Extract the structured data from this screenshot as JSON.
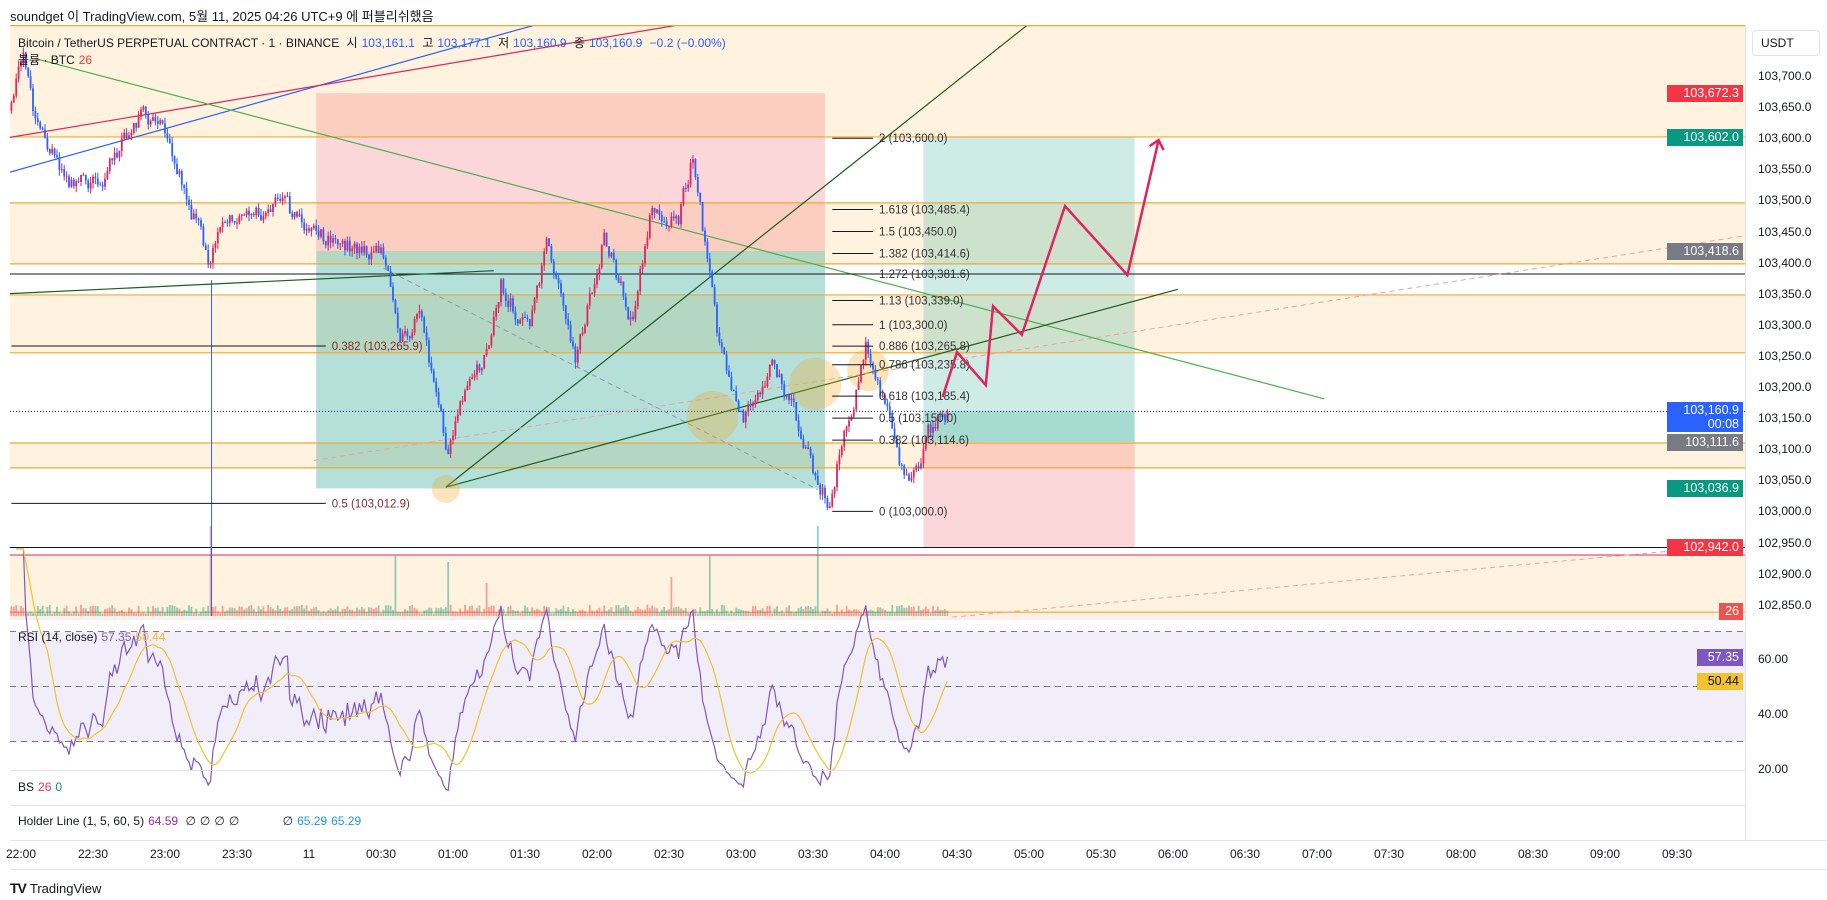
{
  "header": {
    "published": "soundget 이 TradingView.com, 5월 11, 2025 04:26 UTC+9 에 퍼블리쉬했음"
  },
  "legend": {
    "symbol": "Bitcoin / TetherUS PERPETUAL CONTRACT · 1 · BINANCE",
    "open_label": "시",
    "open": "103,161.1",
    "high_label": "고",
    "high": "103,177.1",
    "low_label": "저",
    "low": "103,160.9",
    "close_label": "종",
    "close": "103,160.9",
    "change": "−0.2 (−0.00%)",
    "volume_label": "볼륨 · BTC",
    "volume": "26"
  },
  "price_axis": {
    "currency": "USDT",
    "labels": [
      "103,700.0",
      "103,650.0",
      "103,600.0",
      "103,550.0",
      "103,500.0",
      "103,450.0",
      "103,400.0",
      "103,350.0",
      "103,300.0",
      "103,250.0",
      "103,200.0",
      "103,150.0",
      "103,100.0",
      "103,050.0",
      "103,000.0",
      "102,950.0",
      "102,900.0",
      "102,850.0"
    ],
    "label_prices": [
      103700,
      103650,
      103600,
      103550,
      103500,
      103450,
      103400,
      103350,
      103300,
      103250,
      103200,
      103150,
      103100,
      103050,
      103000,
      102950,
      102900,
      102850
    ],
    "badges": [
      {
        "text": "103,672.3",
        "price": 103672.3,
        "color": "#f23645"
      },
      {
        "text": "103,602.0",
        "price": 103602.0,
        "color": "#089981"
      },
      {
        "text": "103,418.6",
        "price": 103418.6,
        "color": "#787b86"
      },
      {
        "text": "103,160.9",
        "sub": "00:08",
        "price": 103160.9,
        "color": "#2962ff"
      },
      {
        "text": "103,111.6",
        "price": 103111.6,
        "color": "#787b86"
      },
      {
        "text": "103,036.9",
        "price": 103036.9,
        "color": "#089981"
      },
      {
        "text": "102,942.0",
        "price": 102942.0,
        "color": "#f23645"
      }
    ],
    "volume_badge": "26"
  },
  "rsi": {
    "title": "RSI (14, close)",
    "value": "57.35",
    "ma": "50.44",
    "axis": [
      "60.00",
      "40.00",
      "20.00"
    ],
    "axis_values": [
      60,
      40,
      20
    ]
  },
  "bs": {
    "title": "BS",
    "v1": "26",
    "v2": "0"
  },
  "holder": {
    "title": "Holder Line (1, 5, 60, 5)",
    "v1": "64.59",
    "s1": "∅",
    "s2": "∅",
    "s3": "∅",
    "s4": "∅",
    "s5": "∅",
    "v2": "65.29",
    "v3": "65.29"
  },
  "time_axis": {
    "labels": [
      "22:00",
      "22:30",
      "23:00",
      "23:30",
      "11",
      "00:30",
      "01:00",
      "01:30",
      "02:00",
      "02:30",
      "03:00",
      "03:30",
      "04:00",
      "04:30",
      "05:00",
      "05:30",
      "06:00",
      "06:30",
      "07:00",
      "07:30",
      "08:00",
      "08:30",
      "09:00",
      "09:30"
    ]
  },
  "footer": {
    "brand": "TradingView"
  },
  "colors": {
    "up": "#e0245e",
    "down": "#2962ff",
    "orange": "#f0a830",
    "band": "#fff3e0",
    "rsi": "#7e57c2",
    "rsi_ma": "#f2c230"
  },
  "chart_data": {
    "type": "candlestick",
    "x_unit": "minutes since 22:00",
    "price_range": [
      102830,
      103790
    ],
    "last_close": 103160.9,
    "price_path": [
      [
        -4,
        103644
      ],
      [
        1,
        103728
      ],
      [
        6,
        103634
      ],
      [
        20,
        103513
      ],
      [
        35,
        103541
      ],
      [
        49,
        103634
      ],
      [
        61,
        103616
      ],
      [
        69,
        103503
      ],
      [
        78,
        103410
      ],
      [
        88,
        103475
      ],
      [
        107,
        103494
      ],
      [
        122,
        103447
      ],
      [
        136,
        103428
      ],
      [
        151,
        103419
      ],
      [
        158,
        103260
      ],
      [
        166,
        103316
      ],
      [
        178,
        103100
      ],
      [
        185,
        103185
      ],
      [
        195,
        103260
      ],
      [
        200,
        103372
      ],
      [
        212,
        103278
      ],
      [
        219,
        103438
      ],
      [
        231,
        103241
      ],
      [
        243,
        103447
      ],
      [
        255,
        103297
      ],
      [
        262,
        103475
      ],
      [
        274,
        103466
      ],
      [
        280,
        103578
      ],
      [
        287,
        103372
      ],
      [
        291,
        103260
      ],
      [
        301,
        103148
      ],
      [
        313,
        103241
      ],
      [
        325,
        103129
      ],
      [
        333,
        103035
      ],
      [
        337,
        103016
      ],
      [
        342,
        103110
      ],
      [
        352,
        103260
      ],
      [
        359,
        103185
      ],
      [
        366,
        103073
      ],
      [
        374,
        103054
      ],
      [
        378,
        103129
      ],
      [
        386,
        103160.9
      ]
    ],
    "volume_spikes": [
      [
        79,
        300
      ],
      [
        156,
        200
      ],
      [
        178,
        180
      ],
      [
        194,
        110
      ],
      [
        271,
        130
      ],
      [
        287,
        200
      ],
      [
        332,
        300
      ]
    ],
    "horizontal_levels": {
      "orange": [
        103781,
        103602,
        103496,
        103398,
        103348,
        103255,
        103110,
        103070,
        102838
      ],
      "black": [
        103381.6,
        102942
      ],
      "red": [
        102930
      ],
      "current": 103160.9
    },
    "bands": [
      [
        103781,
        103602
      ],
      [
        103496,
        103398
      ],
      [
        103348,
        103255
      ],
      [
        103110,
        103070
      ],
      [
        102930,
        102838
      ]
    ],
    "short_position": {
      "t0": 123,
      "t1": 335,
      "stop": 103672.3,
      "entry": 103418.6,
      "target": 103036.9
    },
    "long_position": {
      "t0": 376,
      "t1": 464,
      "target": 103602.0,
      "entry": 103111.6,
      "stop": 102942.0
    },
    "fib_right": {
      "t0": 338,
      "t1": 355,
      "levels": [
        {
          "text": "2 (103,600.0)",
          "price": 103600
        },
        {
          "text": "1.618 (103,485.4)",
          "price": 103485.4
        },
        {
          "text": "1.5 (103,450.0)",
          "price": 103450
        },
        {
          "text": "1.382 (103,414.6)",
          "price": 103414.6
        },
        {
          "text": "1.272 (103,381.6)",
          "price": 103381.6
        },
        {
          "text": "1.13 (103,339.0)",
          "price": 103339
        },
        {
          "text": "1 (103,300.0)",
          "price": 103300
        },
        {
          "text": "0.886 (103,265.8)",
          "price": 103265.8
        },
        {
          "text": "0.786 (103,235.8)",
          "price": 103235.8
        },
        {
          "text": "0.618 (103,185.4)",
          "price": 103185.4
        },
        {
          "text": "0.5 (103,150.0)",
          "price": 103150
        },
        {
          "text": "0.382 (103,114.6)",
          "price": 103114.6
        },
        {
          "text": "0 (103,000.0)",
          "price": 103000
        }
      ]
    },
    "fib_left": {
      "t0": -4,
      "t1": 127,
      "levels": [
        {
          "text": "0.382 (103,265.9)",
          "price": 103265.9
        },
        {
          "text": "0.5 (103,012.9)",
          "price": 103012.9
        }
      ]
    },
    "trend_lines": [
      {
        "name": "blue-trendline",
        "color": "#2962ff",
        "pts": [
          [
            -5,
            103545
          ],
          [
            216,
            103784
          ]
        ]
      },
      {
        "name": "red-trendline",
        "color": "#e0245e",
        "pts": [
          [
            -5,
            103601
          ],
          [
            277,
            103784
          ]
        ]
      },
      {
        "name": "green-descending-line",
        "color": "#4caf50",
        "pts": [
          [
            6,
            103728
          ],
          [
            543,
            103181
          ]
        ]
      },
      {
        "name": "dark-green-steep-line",
        "color": "#1b5e20",
        "pts": [
          [
            177,
            103039
          ],
          [
            420,
            103784
          ]
        ]
      },
      {
        "name": "dark-green-left-line",
        "color": "#1b5e20",
        "pts": [
          [
            -5,
            103350
          ],
          [
            197,
            103387
          ]
        ]
      },
      {
        "name": "dark-green-rising-line",
        "color": "#1b5e20",
        "pts": [
          [
            177,
            103039
          ],
          [
            482,
            103357
          ]
        ]
      }
    ],
    "dashed_lines": [
      {
        "name": "pink-dashed-upper",
        "color": "#f0a0a0",
        "pts": [
          [
            122,
            103082
          ],
          [
            746,
            103460
          ]
        ]
      },
      {
        "name": "pink-dashed-lower",
        "color": "#f0a0a0",
        "pts": [
          [
            388,
            102830
          ],
          [
            746,
            102957
          ]
        ]
      },
      {
        "name": "grey-dashed-line",
        "color": "#9598a1",
        "pts": [
          [
            151,
            103391
          ],
          [
            332,
            103035
          ]
        ]
      }
    ],
    "vertical_line": {
      "t": 79.4,
      "price": 103372
    },
    "projection_path": [
      [
        384,
        103184
      ],
      [
        390,
        103256
      ],
      [
        402,
        103203
      ],
      [
        405,
        103330
      ],
      [
        417,
        103284
      ],
      [
        435,
        103491
      ],
      [
        461,
        103380
      ],
      [
        474,
        103597
      ]
    ],
    "highlight_circles": [
      [
        177,
        103036,
        14
      ],
      [
        288,
        103152,
        26
      ],
      [
        331,
        103205,
        26
      ],
      [
        353,
        103227,
        21
      ]
    ]
  }
}
